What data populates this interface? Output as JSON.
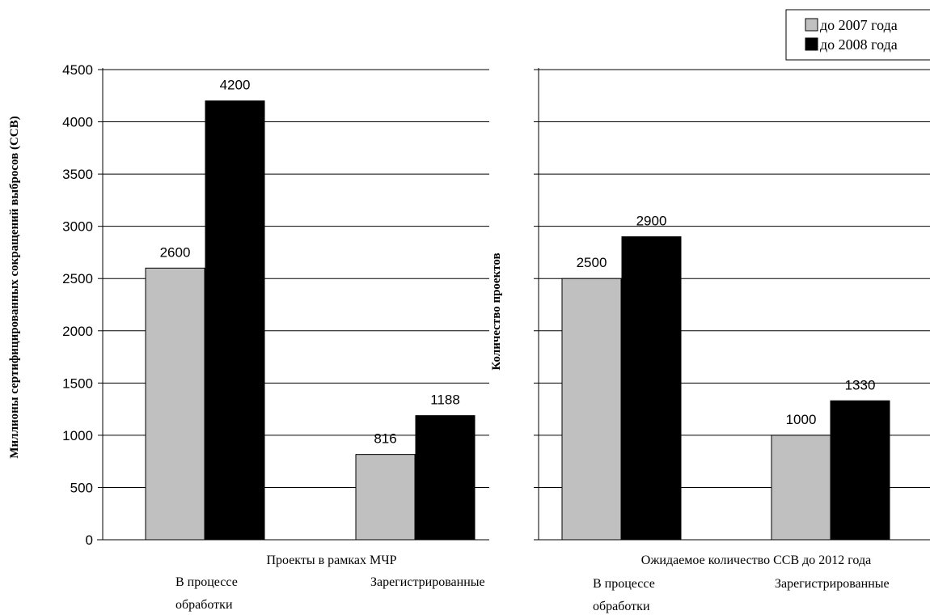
{
  "legend": [
    "до 2007 года",
    "до 2008 года"
  ],
  "colors": {
    "series_2007": "#c0c0c0",
    "series_2008": "#000000",
    "grid": "#000000",
    "background": "#ffffff"
  },
  "chart_data": [
    {
      "type": "bar",
      "title": "",
      "xlabel": "Проекты в рамках МЧР",
      "ylabel": "Миллионы сертифицированных сокращений выбросов (ССВ)",
      "categories": [
        "В процессе обработки",
        "Зарегистрированные"
      ],
      "category_lines": [
        [
          "В процессе",
          "обработки"
        ],
        [
          "Зарегистрированные"
        ]
      ],
      "series": [
        {
          "name": "до 2007 года",
          "values": [
            2600,
            816
          ]
        },
        {
          "name": "до 2008 года",
          "values": [
            4200,
            1188
          ]
        }
      ],
      "ylim": [
        0,
        4500
      ],
      "yticks": [
        "0",
        "500",
        "1000",
        "1500",
        "2000",
        "2500",
        "3000",
        "3500",
        "4000",
        "4500"
      ],
      "grid": true,
      "legend_position": "top-right"
    },
    {
      "type": "bar",
      "title": "",
      "xlabel": "Ожидаемое количество ССВ до 2012 года",
      "ylabel": "Количество проектов",
      "categories": [
        "В процессе обработки",
        "Зарегистрированные"
      ],
      "category_lines": [
        [
          "В процессе",
          "обработки"
        ],
        [
          "Зарегистрированные"
        ]
      ],
      "series": [
        {
          "name": "до 2007 года",
          "values": [
            2500,
            1000
          ]
        },
        {
          "name": "до 2008 года",
          "values": [
            2900,
            1330
          ]
        }
      ],
      "ylim": [
        0,
        4500
      ],
      "grid": true,
      "legend_position": "top-right"
    }
  ]
}
